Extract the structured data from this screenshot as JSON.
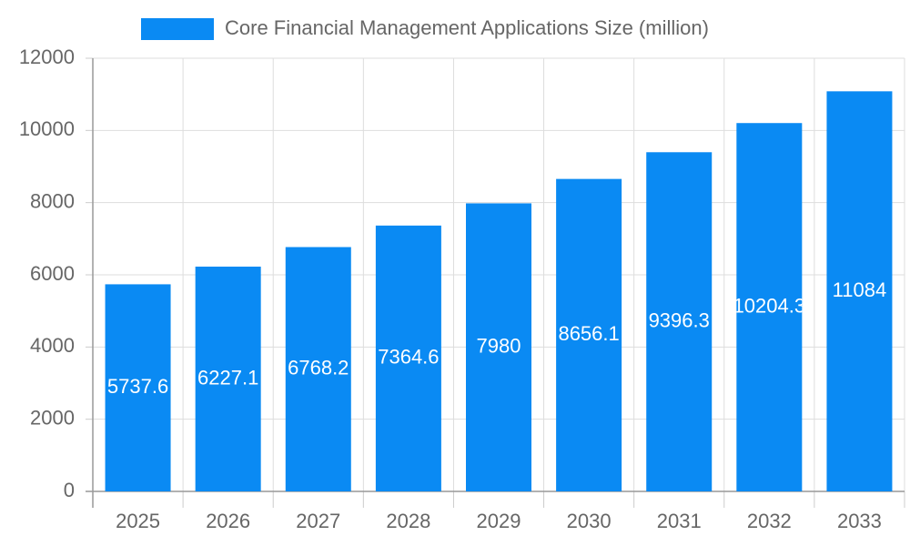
{
  "chart_data": {
    "type": "bar",
    "categories": [
      "2025",
      "2026",
      "2027",
      "2028",
      "2029",
      "2030",
      "2031",
      "2032",
      "2033"
    ],
    "series": [
      {
        "name": "Core Financial Management Applications Size (million)",
        "color": "#0a8af3",
        "values": [
          5737.6,
          6227.1,
          6768.2,
          7364.6,
          7980,
          8656.1,
          9396.3,
          10204.3,
          11084
        ]
      }
    ],
    "ylim": [
      0,
      12000
    ],
    "yticks": [
      0,
      2000,
      4000,
      6000,
      8000,
      10000,
      12000
    ],
    "grid": true,
    "legend": "top"
  }
}
